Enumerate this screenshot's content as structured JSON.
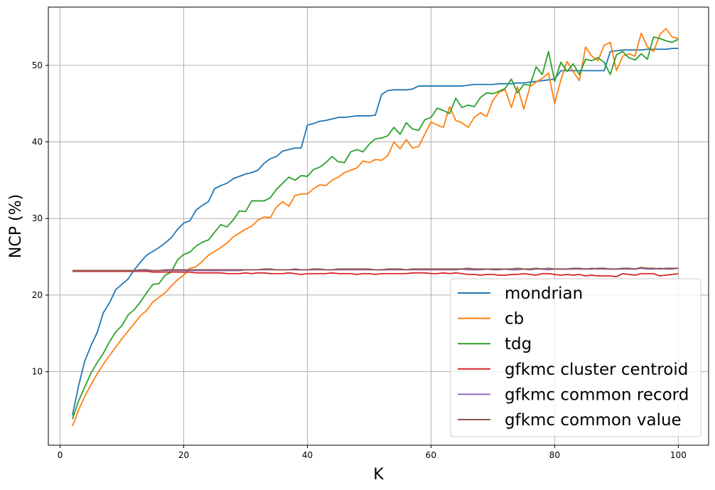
{
  "chart_data": {
    "type": "line",
    "title": "",
    "xlabel": "K",
    "ylabel": "NCP (%)",
    "xlim": [
      -1.9,
      104.9
    ],
    "ylim": [
      0.4,
      57.6
    ],
    "xticks": [
      0,
      20,
      40,
      60,
      80,
      100
    ],
    "yticks": [
      10,
      20,
      30,
      40,
      50
    ],
    "grid": true,
    "legend_position": "lower-right",
    "x": [
      2,
      3,
      4,
      5,
      6,
      7,
      8,
      9,
      10,
      11,
      12,
      13,
      14,
      15,
      16,
      17,
      18,
      19,
      20,
      21,
      22,
      23,
      24,
      25,
      26,
      27,
      28,
      29,
      30,
      31,
      32,
      33,
      34,
      35,
      36,
      37,
      38,
      39,
      40,
      41,
      42,
      43,
      44,
      45,
      46,
      47,
      48,
      49,
      50,
      51,
      52,
      53,
      54,
      55,
      56,
      57,
      58,
      59,
      60,
      61,
      62,
      63,
      64,
      65,
      66,
      67,
      68,
      69,
      70,
      71,
      72,
      73,
      74,
      75,
      76,
      77,
      78,
      79,
      80,
      81,
      82,
      83,
      84,
      85,
      86,
      87,
      88,
      89,
      90,
      91,
      92,
      93,
      94,
      95,
      96,
      97,
      98,
      99,
      100
    ],
    "series": [
      {
        "name": "mondrian",
        "color": "#1f77b4",
        "values": [
          4.3,
          8.2,
          11.4,
          13.4,
          15.1,
          17.7,
          19.0,
          20.7,
          21.4,
          22.1,
          23.3,
          24.3,
          25.2,
          25.7,
          26.2,
          26.8,
          27.5,
          28.6,
          29.4,
          29.7,
          31.1,
          31.7,
          32.2,
          33.9,
          34.3,
          34.6,
          35.2,
          35.5,
          35.8,
          36.0,
          36.3,
          37.2,
          37.8,
          38.1,
          38.8,
          39.0,
          39.2,
          39.2,
          42.2,
          42.4,
          42.7,
          42.8,
          43.0,
          43.2,
          43.2,
          43.3,
          43.4,
          43.4,
          43.4,
          43.5,
          46.2,
          46.7,
          46.8,
          46.8,
          46.8,
          46.9,
          47.3,
          47.3,
          47.3,
          47.3,
          47.3,
          47.3,
          47.3,
          47.3,
          47.4,
          47.5,
          47.5,
          47.5,
          47.5,
          47.6,
          47.6,
          47.6,
          47.7,
          47.7,
          47.8,
          47.9,
          48.0,
          48.1,
          48.2,
          49.3,
          49.3,
          49.3,
          49.3,
          49.3,
          49.3,
          49.3,
          49.3,
          51.8,
          51.9,
          52.0,
          52.0,
          52.0,
          52.0,
          52.1,
          52.1,
          52.1,
          52.1,
          52.2,
          52.2
        ]
      },
      {
        "name": "cb",
        "color": "#ff7f0e",
        "values": [
          2.9,
          5.0,
          6.8,
          8.3,
          9.7,
          11.0,
          12.1,
          13.2,
          14.3,
          15.3,
          16.3,
          17.3,
          18.0,
          19.1,
          19.7,
          20.3,
          21.2,
          22.0,
          22.6,
          23.5,
          23.7,
          24.4,
          25.2,
          25.7,
          26.2,
          26.8,
          27.6,
          28.1,
          28.6,
          29.0,
          29.8,
          30.2,
          30.1,
          31.5,
          32.2,
          31.6,
          33.0,
          33.2,
          33.2,
          33.9,
          34.4,
          34.3,
          35.0,
          35.4,
          36.0,
          36.3,
          36.6,
          37.5,
          37.3,
          37.7,
          37.6,
          38.2,
          40.0,
          39.1,
          40.3,
          39.2,
          39.4,
          41.0,
          42.6,
          42.2,
          41.9,
          44.6,
          42.8,
          42.5,
          41.9,
          43.2,
          43.8,
          43.3,
          45.4,
          46.5,
          46.8,
          44.5,
          47.2,
          44.3,
          47.2,
          47.8,
          48.3,
          49.0,
          45.0,
          48.1,
          50.5,
          49.2,
          48.0,
          52.4,
          51.2,
          50.6,
          52.6,
          53.0,
          49.3,
          51.2,
          51.5,
          51.2,
          54.2,
          52.4,
          51.8,
          54.0,
          54.8,
          53.7,
          53.5
        ]
      },
      {
        "name": "tdg",
        "color": "#2ca02c",
        "values": [
          3.8,
          6.2,
          8.0,
          9.8,
          11.2,
          12.4,
          13.9,
          15.2,
          16.0,
          17.4,
          18.1,
          19.1,
          20.3,
          21.4,
          21.5,
          22.6,
          23.0,
          24.6,
          25.3,
          25.6,
          26.4,
          26.9,
          27.2,
          28.2,
          29.2,
          28.9,
          29.8,
          31.0,
          30.9,
          32.3,
          32.3,
          32.3,
          32.7,
          33.8,
          34.6,
          35.4,
          35.0,
          35.6,
          35.5,
          36.4,
          36.7,
          37.3,
          38.1,
          37.4,
          37.3,
          38.7,
          39.0,
          38.7,
          39.7,
          40.4,
          40.5,
          40.8,
          41.9,
          41.0,
          42.5,
          41.7,
          41.5,
          42.9,
          43.2,
          44.4,
          44.1,
          43.7,
          45.7,
          44.5,
          44.8,
          44.6,
          45.8,
          46.4,
          46.3,
          46.6,
          47.0,
          48.2,
          46.4,
          47.5,
          47.4,
          49.8,
          48.8,
          51.8,
          47.9,
          50.4,
          49.2,
          50.2,
          48.8,
          50.8,
          50.6,
          51.0,
          50.4,
          48.8,
          51.4,
          51.8,
          51.0,
          50.7,
          51.5,
          50.8,
          53.7,
          53.5,
          53.2,
          53.0,
          53.4
        ]
      },
      {
        "name": "gfkmc cluster centroid",
        "color": "#d62728",
        "values": [
          23.1,
          23.1,
          23.1,
          23.1,
          23.1,
          23.1,
          23.1,
          23.1,
          23.1,
          23.1,
          23.1,
          23.1,
          23.1,
          23.0,
          23.0,
          23.0,
          23.0,
          23.0,
          23.0,
          23.0,
          22.9,
          22.9,
          22.9,
          22.9,
          22.9,
          22.8,
          22.8,
          22.8,
          22.9,
          22.8,
          22.9,
          22.9,
          22.8,
          22.8,
          22.8,
          22.9,
          22.8,
          22.7,
          22.8,
          22.8,
          22.8,
          22.8,
          22.9,
          22.8,
          22.8,
          22.8,
          22.7,
          22.8,
          22.8,
          22.7,
          22.8,
          22.8,
          22.8,
          22.8,
          22.8,
          22.9,
          22.9,
          22.9,
          22.8,
          22.8,
          22.9,
          22.8,
          22.9,
          22.8,
          22.7,
          22.7,
          22.6,
          22.7,
          22.7,
          22.6,
          22.6,
          22.7,
          22.7,
          22.8,
          22.7,
          22.6,
          22.8,
          22.8,
          22.7,
          22.6,
          22.7,
          22.6,
          22.7,
          22.5,
          22.6,
          22.5,
          22.5,
          22.5,
          22.4,
          22.8,
          22.7,
          22.6,
          22.8,
          22.8,
          22.8,
          22.5,
          22.6,
          22.7,
          22.8
        ]
      },
      {
        "name": "gfkmc common record",
        "color": "#9467bd",
        "values": [
          23.2,
          23.2,
          23.2,
          23.2,
          23.2,
          23.2,
          23.2,
          23.2,
          23.2,
          23.2,
          23.2,
          23.2,
          23.2,
          23.2,
          23.2,
          23.2,
          23.2,
          23.2,
          23.2,
          23.2,
          23.2,
          23.2,
          23.2,
          23.2,
          23.2,
          23.2,
          23.2,
          23.2,
          23.3,
          23.3,
          23.3,
          23.3,
          23.3,
          23.3,
          23.3,
          23.3,
          23.3,
          23.3,
          23.3,
          23.3,
          23.3,
          23.3,
          23.3,
          23.3,
          23.3,
          23.3,
          23.3,
          23.3,
          23.3,
          23.3,
          23.3,
          23.3,
          23.3,
          23.3,
          23.3,
          23.3,
          23.3,
          23.3,
          23.3,
          23.3,
          23.3,
          23.3,
          23.3,
          23.4,
          23.3,
          23.3,
          23.3,
          23.4,
          23.3,
          23.3,
          23.4,
          23.3,
          23.3,
          23.4,
          23.3,
          23.4,
          23.4,
          23.3,
          23.4,
          23.4,
          23.4,
          23.4,
          23.4,
          23.4,
          23.5,
          23.4,
          23.4,
          23.4,
          23.4,
          23.4,
          23.4,
          23.4,
          23.5,
          23.4,
          23.4,
          23.5,
          23.4,
          23.4,
          23.5
        ]
      },
      {
        "name": "gfkmc common value",
        "color": "#8c564b",
        "values": [
          23.2,
          23.2,
          23.2,
          23.2,
          23.2,
          23.2,
          23.2,
          23.2,
          23.2,
          23.2,
          23.2,
          23.3,
          23.3,
          23.2,
          23.2,
          23.3,
          23.3,
          23.3,
          23.3,
          23.3,
          23.3,
          23.3,
          23.3,
          23.3,
          23.3,
          23.3,
          23.3,
          23.3,
          23.3,
          23.3,
          23.3,
          23.4,
          23.4,
          23.3,
          23.3,
          23.3,
          23.4,
          23.3,
          23.3,
          23.4,
          23.4,
          23.3,
          23.3,
          23.4,
          23.4,
          23.4,
          23.4,
          23.4,
          23.4,
          23.3,
          23.3,
          23.4,
          23.4,
          23.4,
          23.3,
          23.4,
          23.4,
          23.4,
          23.4,
          23.4,
          23.4,
          23.4,
          23.4,
          23.4,
          23.5,
          23.4,
          23.4,
          23.4,
          23.4,
          23.4,
          23.4,
          23.4,
          23.5,
          23.4,
          23.4,
          23.5,
          23.4,
          23.5,
          23.4,
          23.4,
          23.4,
          23.5,
          23.5,
          23.4,
          23.4,
          23.5,
          23.5,
          23.4,
          23.4,
          23.5,
          23.5,
          23.4,
          23.6,
          23.5,
          23.5,
          23.4,
          23.5,
          23.5,
          23.5
        ]
      }
    ]
  }
}
